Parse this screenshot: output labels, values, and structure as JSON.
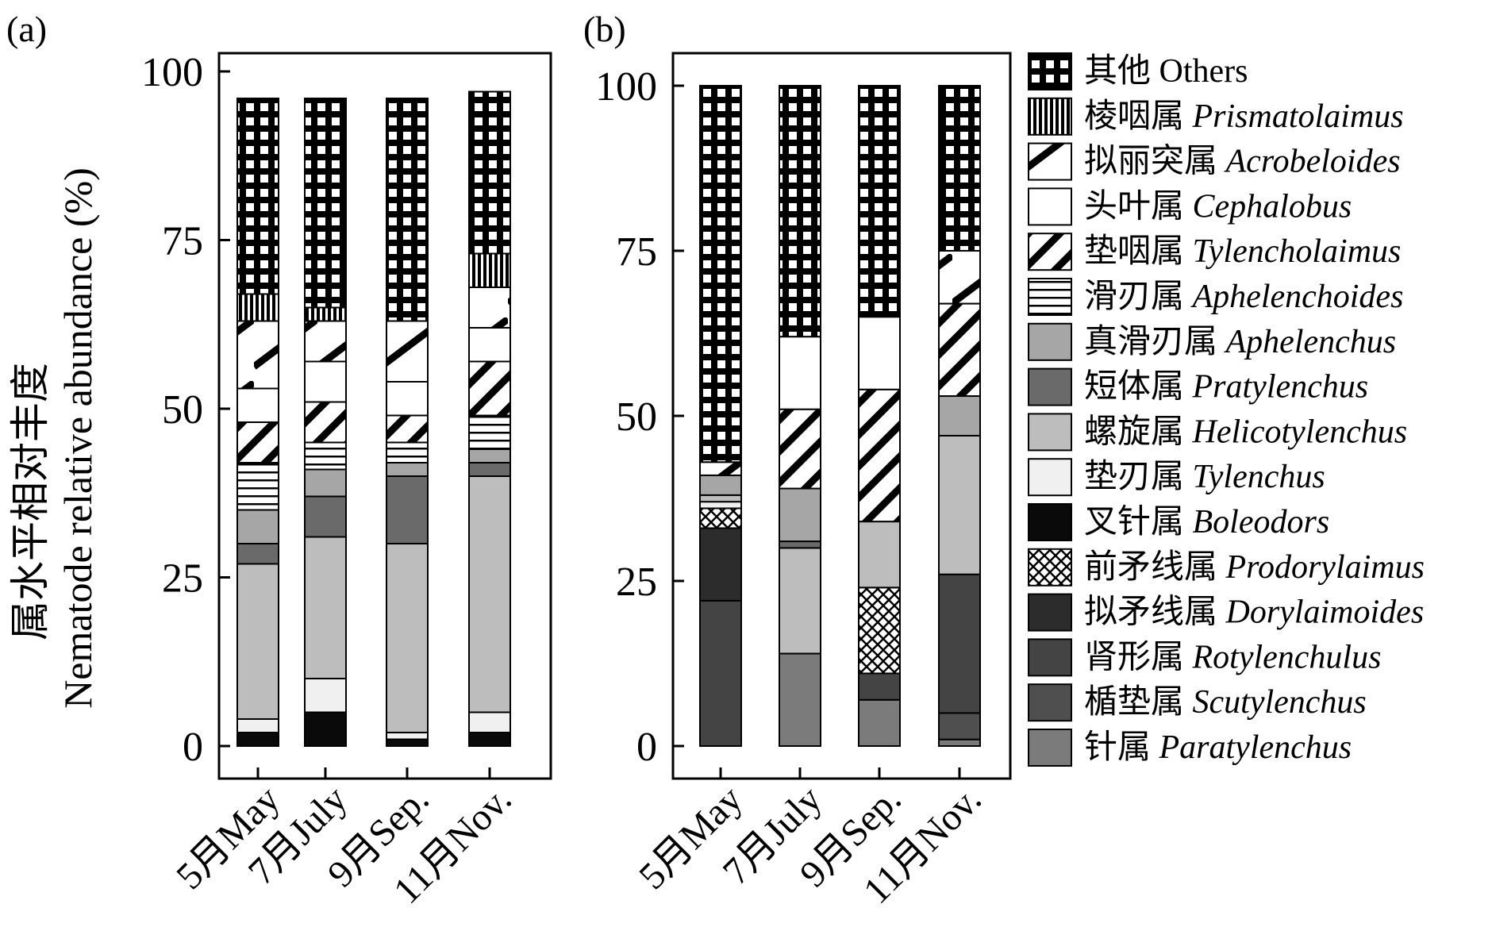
{
  "chart_data": {
    "type": "bar",
    "stacked": true,
    "ylabel_cn": "属水平相对丰度",
    "ylabel_en": "Nematode relative abundance (%)",
    "ylim": [
      0,
      100
    ],
    "yticks": [
      "0",
      "25",
      "50",
      "75",
      "100"
    ],
    "categories": [
      "5月May",
      "7月July",
      "9月Sep.",
      "11月Nov."
    ],
    "legend_position": "right",
    "legend": [
      {
        "cn": "其他",
        "en": "Others",
        "italic": false,
        "pattern": "grid"
      },
      {
        "cn": "棱咽属",
        "en": "Prismatolaimus",
        "italic": true,
        "pattern": "vlines"
      },
      {
        "cn": "拟丽突属",
        "en": "Acrobeloides",
        "italic": true,
        "pattern": "diag"
      },
      {
        "cn": "头叶属",
        "en": "Cephalobus",
        "italic": true,
        "pattern": "white"
      },
      {
        "cn": "垫咽属",
        "en": "Tylencholaimus",
        "italic": true,
        "pattern": "stripes"
      },
      {
        "cn": "滑刃属",
        "en": "Aphelenchoides",
        "italic": true,
        "pattern": "hlines"
      },
      {
        "cn": "真滑刃属",
        "en": "Aphelenchus",
        "italic": true,
        "pattern": "#a6a6a6"
      },
      {
        "cn": "短体属",
        "en": "Pratylenchus",
        "italic": true,
        "pattern": "#6a6a6a"
      },
      {
        "cn": "螺旋属",
        "en": "Helicotylenchus",
        "italic": true,
        "pattern": "#bdbdbd"
      },
      {
        "cn": "垫刃属",
        "en": "Tylenchus",
        "italic": true,
        "pattern": "#f0f0f0"
      },
      {
        "cn": "叉针属",
        "en": "Boleodors",
        "italic": true,
        "pattern": "#0a0a0a"
      },
      {
        "cn": "前矛线属",
        "en": "Prodorylaimus",
        "italic": true,
        "pattern": "cross"
      },
      {
        "cn": "拟矛线属",
        "en": "Dorylaimoides",
        "italic": true,
        "pattern": "#2c2c2c"
      },
      {
        "cn": "肾形属",
        "en": "Rotylenchulus",
        "italic": true,
        "pattern": "#444444"
      },
      {
        "cn": "楯垫属",
        "en": "Scutylenchus",
        "italic": true,
        "pattern": "#4f4f4f"
      },
      {
        "cn": "针属",
        "en": "Paratylenchus",
        "italic": true,
        "pattern": "#7b7b7b"
      }
    ],
    "panels": [
      {
        "label": "(a)",
        "series": [
          {
            "name": "Paratylenchus",
            "values": [
              0,
              0,
              0,
              0
            ]
          },
          {
            "name": "Scutylenchus",
            "values": [
              0,
              0,
              0,
              0
            ]
          },
          {
            "name": "Rotylenchulus",
            "values": [
              0,
              0,
              0,
              0
            ]
          },
          {
            "name": "Dorylaimoides",
            "values": [
              0,
              0,
              0,
              0
            ]
          },
          {
            "name": "Prodorylaimus",
            "values": [
              0,
              0,
              0,
              0
            ]
          },
          {
            "name": "Boleodors",
            "values": [
              2,
              5,
              1,
              2
            ]
          },
          {
            "name": "Tylenchus",
            "values": [
              2,
              5,
              1,
              3
            ]
          },
          {
            "name": "Helicotylenchus",
            "values": [
              23,
              21,
              28,
              35
            ]
          },
          {
            "name": "Pratylenchus",
            "values": [
              3,
              6,
              10,
              2
            ]
          },
          {
            "name": "Aphelenchus",
            "values": [
              5,
              4,
              2,
              2
            ]
          },
          {
            "name": "Aphelenchoides",
            "values": [
              7,
              4,
              3,
              5
            ]
          },
          {
            "name": "Tylencholaimus",
            "values": [
              6,
              6,
              4,
              8
            ]
          },
          {
            "name": "Cephalobus",
            "values": [
              5,
              6,
              5,
              5
            ]
          },
          {
            "name": "Acrobeloides",
            "values": [
              10,
              6,
              9,
              6
            ]
          },
          {
            "name": "Prismatolaimus",
            "values": [
              4,
              2,
              0,
              5
            ]
          },
          {
            "name": "Others",
            "values": [
              29,
              31,
              33,
              24
            ]
          }
        ]
      },
      {
        "label": "(b)",
        "series": [
          {
            "name": "Paratylenchus",
            "values": [
              0,
              14,
              7,
              1
            ]
          },
          {
            "name": "Scutylenchus",
            "values": [
              0,
              0,
              0,
              4
            ]
          },
          {
            "name": "Rotylenchulus",
            "values": [
              22,
              0,
              4,
              21
            ]
          },
          {
            "name": "Dorylaimoides",
            "values": [
              11,
              0,
              0,
              0
            ]
          },
          {
            "name": "Prodorylaimus",
            "values": [
              3,
              0,
              13,
              0
            ]
          },
          {
            "name": "Boleodors",
            "values": [
              0,
              0,
              0,
              0
            ]
          },
          {
            "name": "Tylenchus",
            "values": [
              1,
              0,
              0,
              0
            ]
          },
          {
            "name": "Helicotylenchus",
            "values": [
              1,
              16,
              10,
              21
            ]
          },
          {
            "name": "Pratylenchus",
            "values": [
              0,
              1,
              0,
              0
            ]
          },
          {
            "name": "Aphelenchus",
            "values": [
              3,
              8,
              0,
              6
            ]
          },
          {
            "name": "Aphelenchoides",
            "values": [
              0,
              0,
              0,
              0
            ]
          },
          {
            "name": "Tylencholaimus",
            "values": [
              0,
              12,
              20,
              14
            ]
          },
          {
            "name": "Cephalobus",
            "values": [
              0,
              11,
              11,
              0
            ]
          },
          {
            "name": "Acrobeloides",
            "values": [
              2,
              0,
              0,
              8
            ]
          },
          {
            "name": "Prismatolaimus",
            "values": [
              0,
              0,
              0,
              0
            ]
          },
          {
            "name": "Others",
            "values": [
              57,
              38,
              35,
              25
            ]
          }
        ]
      }
    ]
  }
}
